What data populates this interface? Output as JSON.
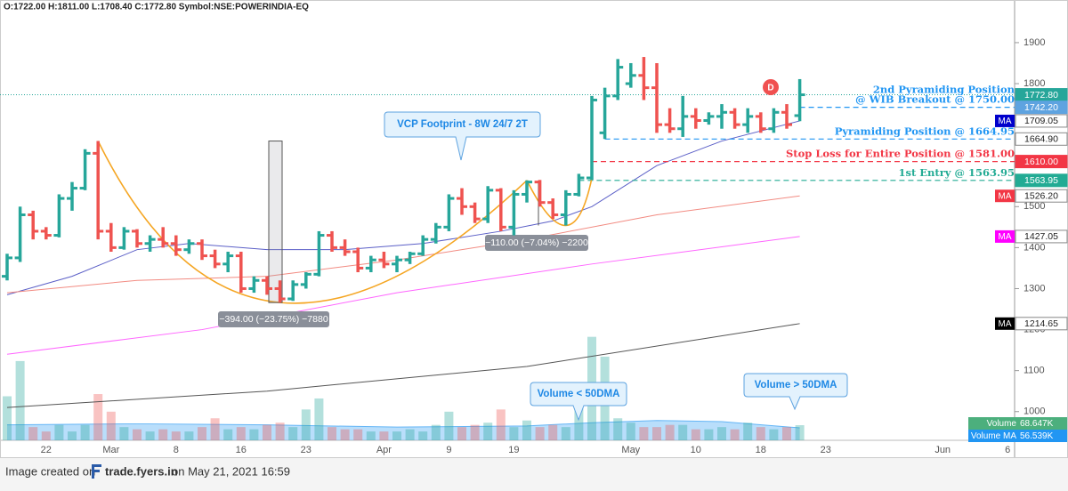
{
  "chart_data": {
    "type": "ohlc",
    "header": "O:1722.00 H:1811.00 L:1708.40 C:1772.80 Symbol:NSE:POWERINDIA-EQ",
    "categories": [
      null,
      null,
      null,
      "22",
      null,
      null,
      null,
      null,
      "Mar",
      null,
      null,
      null,
      null,
      "8",
      null,
      null,
      null,
      null,
      "16",
      null,
      null,
      null,
      null,
      "23",
      null,
      null,
      null,
      null,
      null,
      "Apr",
      null,
      null,
      null,
      null,
      "9",
      null,
      null,
      null,
      null,
      "19",
      null,
      null,
      null,
      null,
      null,
      null,
      null,
      null,
      "May",
      null,
      null,
      null,
      null,
      "10",
      null,
      null,
      null,
      null,
      "18",
      null,
      null,
      null,
      null,
      "23",
      null,
      null,
      null,
      null,
      null,
      null,
      null,
      null,
      "Jun",
      null,
      null,
      null,
      null,
      "6"
    ],
    "open": [
      1330,
      1375,
      1480,
      1440,
      1430,
      1520,
      1545,
      1630,
      1440,
      1400,
      1440,
      1410,
      1420,
      1410,
      1395,
      1410,
      1380,
      1360,
      1380,
      1300,
      1320,
      1300,
      1275,
      1310,
      1335,
      1430,
      1400,
      1390,
      1350,
      1370,
      1360,
      1370,
      1385,
      1420,
      1450,
      1520,
      1500,
      1470,
      1540,
      1450,
      1530,
      1560,
      1510,
      1480,
      1530,
      1570,
      1680,
      1770,
      1800,
      1820,
      1790,
      1700,
      1690,
      1720,
      1710,
      1720,
      1730,
      1700,
      1720,
      1690,
      1730,
      1722,
      null,
      null,
      null,
      null,
      null,
      null,
      null,
      null,
      null,
      null,
      null,
      null,
      null,
      null,
      null,
      null
    ],
    "high": [
      1385,
      1500,
      1490,
      1450,
      1530,
      1560,
      1640,
      1660,
      1460,
      1450,
      1445,
      1430,
      1450,
      1430,
      1420,
      1420,
      1395,
      1390,
      1390,
      1330,
      1330,
      1320,
      1320,
      1340,
      1440,
      1440,
      1420,
      1400,
      1380,
      1390,
      1380,
      1390,
      1430,
      1460,
      1530,
      1545,
      1510,
      1550,
      1545,
      1540,
      1564,
      1565,
      1520,
      1540,
      1580,
      1770,
      1790,
      1860,
      1850,
      1865,
      1850,
      1740,
      1770,
      1740,
      1730,
      1750,
      1740,
      1740,
      1730,
      1740,
      1750,
      1811,
      null,
      null,
      null,
      null,
      null,
      null,
      null,
      null,
      null,
      null,
      null,
      null,
      null,
      null,
      null,
      null
    ],
    "low": [
      1320,
      1365,
      1420,
      1420,
      1425,
      1490,
      1540,
      1420,
      1390,
      1395,
      1400,
      1390,
      1400,
      1380,
      1385,
      1370,
      1350,
      1340,
      1290,
      1290,
      1285,
      1266,
      1270,
      1300,
      1330,
      1390,
      1380,
      1340,
      1340,
      1350,
      1340,
      1360,
      1380,
      1410,
      1440,
      1480,
      1460,
      1460,
      1440,
      1430,
      1510,
      1500,
      1470,
      1454,
      1525,
      1565,
      1665,
      1760,
      1790,
      1760,
      1680,
      1680,
      1670,
      1690,
      1700,
      1690,
      1690,
      1680,
      1680,
      1680,
      1690,
      1708.4,
      null,
      null,
      null,
      null,
      null,
      null,
      null,
      null,
      null,
      null,
      null,
      null,
      null,
      null,
      null,
      null
    ],
    "close": [
      1375,
      1480,
      1440,
      1430,
      1520,
      1545,
      1630,
      1440,
      1400,
      1440,
      1410,
      1420,
      1410,
      1395,
      1410,
      1380,
      1360,
      1380,
      1300,
      1320,
      1300,
      1275,
      1310,
      1335,
      1430,
      1400,
      1390,
      1350,
      1370,
      1360,
      1370,
      1385,
      1420,
      1450,
      1520,
      1500,
      1470,
      1540,
      1450,
      1530,
      1560,
      1510,
      1480,
      1530,
      1570,
      1760,
      1770,
      1840,
      1820,
      1790,
      1700,
      1690,
      1720,
      1710,
      1720,
      1730,
      1700,
      1720,
      1690,
      1730,
      1700,
      1772.8,
      null,
      null,
      null,
      null,
      null,
      null,
      null,
      null,
      null,
      null,
      null,
      null,
      null,
      null,
      null,
      null
    ],
    "volume": [
      200,
      360,
      60,
      40,
      70,
      40,
      70,
      210,
      130,
      60,
      50,
      40,
      50,
      40,
      40,
      60,
      100,
      50,
      60,
      50,
      70,
      80,
      60,
      140,
      190,
      60,
      50,
      50,
      40,
      40,
      40,
      50,
      40,
      70,
      130,
      60,
      70,
      80,
      140,
      60,
      90,
      60,
      70,
      60,
      160,
      470,
      380,
      100,
      80,
      60,
      60,
      70,
      70,
      50,
      50,
      60,
      50,
      80,
      60,
      50,
      60,
      68.647,
      null,
      null,
      null,
      null,
      null,
      null,
      null,
      null,
      null,
      null,
      null,
      null,
      null,
      null,
      null,
      null
    ],
    "up_color": "#26a69a",
    "down_color": "#ef5350",
    "volume_up_color": "rgba(38,166,154,0.35)",
    "volume_down_color": "rgba(239,83,80,0.35)",
    "ylim": [
      930,
      2004
    ],
    "yticks": [
      1000,
      1100,
      1200,
      1300,
      1400,
      1500,
      1600,
      1700,
      1800,
      1900
    ],
    "volume_lim": [
      0,
      2000
    ],
    "last_price_label": "1772.80",
    "last_price_color": "#26a69a",
    "volume_label": {
      "tag": "Volume",
      "label": "68.647K",
      "color": "#4caf7d"
    },
    "volume_ma": {
      "x": [
        0,
        10,
        20,
        30,
        40,
        45,
        50,
        55,
        61
      ],
      "values": [
        70,
        75,
        70,
        60,
        65,
        80,
        90,
        85,
        56.539
      ],
      "tag": "Volume MA",
      "label": "56.539K",
      "color": "#2196f3",
      "fill": "rgba(100,181,246,0.45)"
    },
    "moving_averages": [
      {
        "x": [
          0,
          5,
          10,
          14,
          20,
          26,
          32,
          38,
          42,
          45,
          50,
          55,
          61
        ],
        "values": [
          1285,
          1330,
          1395,
          1410,
          1395,
          1395,
          1410,
          1440,
          1465,
          1500,
          1600,
          1660,
          1709.05
        ],
        "color": "#5b5fc7",
        "box": "#0000cc",
        "tag": "MA",
        "label": "1709.05"
      },
      {
        "x": [
          0,
          10,
          20,
          30,
          40,
          50,
          61
        ],
        "values": [
          1290,
          1320,
          1330,
          1370,
          1420,
          1480,
          1526.2
        ],
        "color": "#f28b82",
        "box": "#f23645",
        "tag": "MA",
        "label": "1526.20"
      },
      {
        "x": [
          0,
          15,
          30,
          45,
          61
        ],
        "values": [
          1140,
          1200,
          1290,
          1360,
          1427.05
        ],
        "color": "#ff66ff",
        "box": "#ff00ff",
        "tag": "MA",
        "label": "1427.05"
      },
      {
        "x": [
          0,
          20,
          40,
          61
        ],
        "values": [
          1010,
          1050,
          1110,
          1214.65
        ],
        "color": "#555555",
        "box": "#000000",
        "tag": "MA",
        "label": "1214.65"
      }
    ],
    "cup_color": "#f5a623",
    "levels": [
      {
        "value": 1742.2,
        "label": "1742.20",
        "color": "#2196f3",
        "box": "#5ea3e0",
        "text": [
          "2nd Pyramiding Position",
          "@ WIB Breakout @ 1750.00"
        ]
      },
      {
        "value": 1664.9,
        "label": "1664.90",
        "color": "#2196f3",
        "box": "#ffffff",
        "text": [
          "Pyramiding Position @ 1664.95"
        ]
      },
      {
        "value": 1610,
        "label": "1610.00",
        "color": "#f23645",
        "box": "#f23645",
        "text": [
          "Stop Loss for Entire Position @ 1581.00"
        ]
      },
      {
        "value": 1563.95,
        "label": "1563.95",
        "color": "#22ab94",
        "box": "#22ab94",
        "text": [
          "1st Entry @ 1563.95"
        ]
      }
    ],
    "measures": [
      "−394.00 (−23.75%) −7880",
      "−110.00 (−7.04%) −2200"
    ],
    "callouts": [
      "VCP Footprint - 8W 24/7 2T",
      "Volume < 50DMA",
      "Volume > 50DMA"
    ],
    "marker": "D",
    "footer": {
      "prefix": "Image created on",
      "brand": "trade.fyers.in",
      "suffix": "on May 21, 2021 16:59"
    }
  }
}
